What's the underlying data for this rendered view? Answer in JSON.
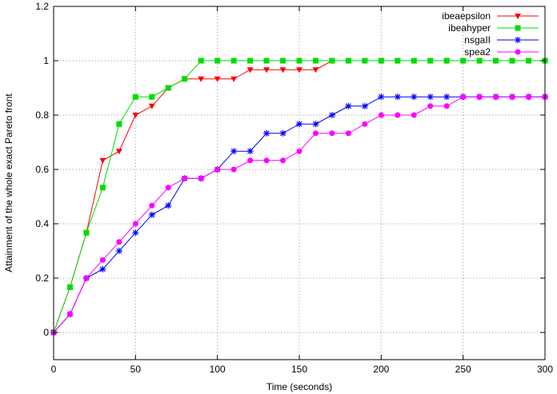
{
  "chart_data": {
    "type": "line",
    "xlabel": "Time (seconds)",
    "ylabel": "Attainment of the whole exact Pareto front",
    "xlim": [
      0,
      300
    ],
    "ylim": [
      -0.1,
      1.2
    ],
    "xticks": [
      0,
      50,
      100,
      150,
      200,
      250,
      300
    ],
    "yticks": [
      0,
      0.2,
      0.4,
      0.6,
      0.8,
      1,
      1.2
    ],
    "xtick_labels": [
      "0",
      "50",
      "100",
      "150",
      "200",
      "250",
      "300"
    ],
    "ytick_labels": [
      "0",
      "0.2",
      "0.4",
      "0.6",
      "0.8",
      "1",
      "1.2"
    ],
    "grid": true,
    "grid_style": "dotted",
    "legend_position": "top-right",
    "series": [
      {
        "name": "ibeaepsilon",
        "color": "#ff0000",
        "marker": "triangle-down",
        "x": [
          0,
          10,
          20,
          30,
          40,
          50,
          60,
          70,
          80,
          90,
          100,
          110,
          120,
          130,
          140,
          150,
          160,
          170,
          180,
          190,
          200,
          210,
          220,
          230,
          240,
          250,
          260,
          270,
          280,
          290,
          300
        ],
        "values": [
          0,
          0.167,
          0.367,
          0.633,
          0.667,
          0.8,
          0.833,
          0.9,
          0.933,
          0.933,
          0.933,
          0.933,
          0.967,
          0.967,
          0.967,
          0.967,
          0.967,
          1,
          1,
          1,
          1,
          1,
          1,
          1,
          1,
          1,
          1,
          1,
          1,
          1,
          1
        ]
      },
      {
        "name": "ibeahyper",
        "color": "#00dd00",
        "marker": "square",
        "x": [
          0,
          10,
          20,
          30,
          40,
          50,
          60,
          70,
          80,
          90,
          100,
          110,
          120,
          130,
          140,
          150,
          160,
          170,
          180,
          190,
          200,
          210,
          220,
          230,
          240,
          250,
          260,
          270,
          280,
          290,
          300
        ],
        "values": [
          0,
          0.167,
          0.367,
          0.533,
          0.767,
          0.867,
          0.867,
          0.9,
          0.933,
          1,
          1,
          1,
          1,
          1,
          1,
          1,
          1,
          1,
          1,
          1,
          1,
          1,
          1,
          1,
          1,
          1,
          1,
          1,
          1,
          1,
          1
        ]
      },
      {
        "name": "nsgaII",
        "color": "#0000ff",
        "marker": "asterisk",
        "x": [
          0,
          10,
          20,
          30,
          40,
          50,
          60,
          70,
          80,
          90,
          100,
          110,
          120,
          130,
          140,
          150,
          160,
          170,
          180,
          190,
          200,
          210,
          220,
          230,
          240,
          250,
          260,
          270,
          280,
          290,
          300
        ],
        "values": [
          0,
          0.067,
          0.2,
          0.233,
          0.3,
          0.367,
          0.433,
          0.467,
          0.567,
          0.567,
          0.6,
          0.667,
          0.667,
          0.733,
          0.733,
          0.767,
          0.767,
          0.8,
          0.833,
          0.833,
          0.867,
          0.867,
          0.867,
          0.867,
          0.867,
          0.867,
          0.867,
          0.867,
          0.867,
          0.867,
          0.867
        ]
      },
      {
        "name": "spea2",
        "color": "#ff00ff",
        "marker": "circle",
        "x": [
          0,
          10,
          20,
          30,
          40,
          50,
          60,
          70,
          80,
          90,
          100,
          110,
          120,
          130,
          140,
          150,
          160,
          170,
          180,
          190,
          200,
          210,
          220,
          230,
          240,
          250,
          260,
          270,
          280,
          290,
          300
        ],
        "values": [
          0,
          0.067,
          0.2,
          0.267,
          0.333,
          0.4,
          0.467,
          0.533,
          0.567,
          0.567,
          0.6,
          0.6,
          0.633,
          0.633,
          0.633,
          0.667,
          0.733,
          0.733,
          0.733,
          0.767,
          0.8,
          0.8,
          0.8,
          0.833,
          0.833,
          0.867,
          0.867,
          0.867,
          0.867,
          0.867,
          0.867
        ]
      }
    ]
  }
}
